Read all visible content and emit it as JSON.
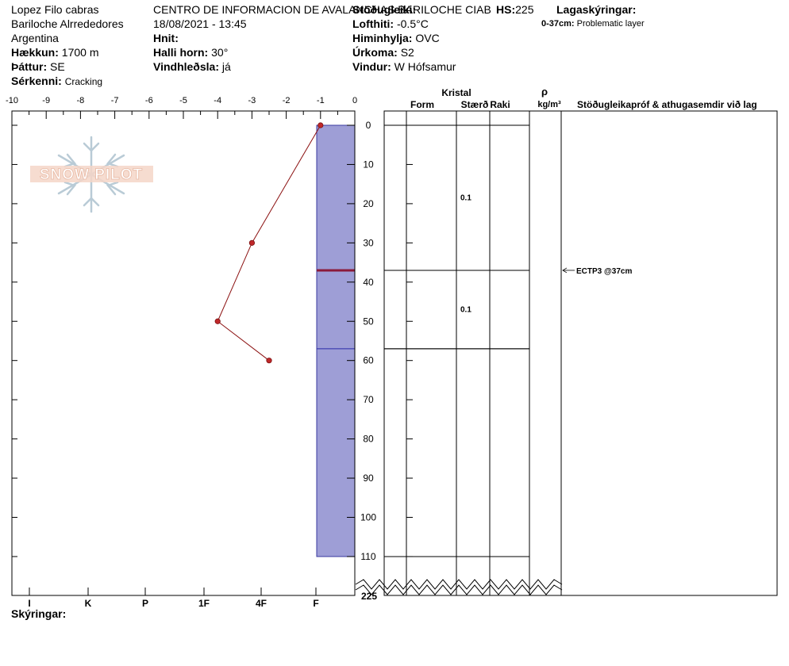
{
  "header": {
    "observer": "Lopez Filo cabras",
    "location": "Bariloche Alrrededores",
    "country": "Argentina",
    "elevation_label": "Hækkun:",
    "elevation_value": "1700 m",
    "aspect_label": "Þáttur:",
    "aspect_value": "SE",
    "specifics_label": "Sérkenni:",
    "specifics_value": "Cracking",
    "org": "CENTRO DE INFORMACION DE AVALANCHAS BARILOCHE CIAB",
    "datetime": "18/08/2021 - 13:45",
    "coords_label": "Hnit:",
    "slope_label": "Halli horn:",
    "slope_value": "30°",
    "wind_loading_label": "Vindhleðsla:",
    "wind_loading_value": "já",
    "stability_label": "Stöðugleiki:",
    "air_temp_label": "Lofthiti:",
    "air_temp_value": "-0.5°C",
    "sky_label": "Himinhylja:",
    "sky_value": "OVC",
    "precip_label": "Úrkoma:",
    "precip_value": "S2",
    "wind_label": "Vindur:",
    "wind_value": "W Hófsamur",
    "hs_label": "HS:",
    "hs_value": "225",
    "layers_label": "Lagaskýringar:",
    "layer_note_range": "0-37cm:",
    "layer_note_text": "Problematic layer"
  },
  "logo_text": "SNOW PILOT",
  "legend_label": "Skýringar:",
  "chart_data": {
    "type": "line",
    "temp_axis": {
      "ticks": [
        -10,
        -9,
        -8,
        -7,
        -6,
        -5,
        -4,
        -3,
        -2,
        -1,
        0
      ],
      "range": [
        -10,
        0
      ]
    },
    "depth_axis": {
      "ticks": [
        0,
        10,
        20,
        30,
        40,
        50,
        60,
        70,
        80,
        90,
        100,
        110
      ],
      "range": [
        0,
        122
      ],
      "break_label": "225"
    },
    "hardness_axis": {
      "labels": [
        "I",
        "K",
        "P",
        "1F",
        "4F",
        "F"
      ]
    },
    "temperature_profile": [
      {
        "depth": 0,
        "temp": -1
      },
      {
        "depth": 30,
        "temp": -3
      },
      {
        "depth": 50,
        "temp": -4
      },
      {
        "depth": 60,
        "temp": -2.5
      }
    ],
    "hardness_profile": {
      "top": 0,
      "bottom": 110,
      "hardness": "F"
    },
    "layer_boundaries": [
      {
        "depth": 37,
        "highlight": true
      },
      {
        "depth": 57,
        "highlight": false
      }
    ],
    "table_headers": {
      "crystal": "Kristal",
      "form": "Form",
      "size": "Stærð",
      "moisture": "Raki",
      "density_symbol": "ρ",
      "density_unit": "kg/m³",
      "comments": "Stöðugleikapróf & athugasemdir við lag"
    },
    "table_layers": [
      {
        "top": 0,
        "bottom": 37,
        "size": "0.1"
      },
      {
        "top": 37,
        "bottom": 57,
        "size": "0.1"
      },
      {
        "top": 57,
        "bottom": 110,
        "size": ""
      }
    ],
    "stability_tests": [
      {
        "depth": 37,
        "label": "ECTP3 @37cm"
      }
    ]
  }
}
